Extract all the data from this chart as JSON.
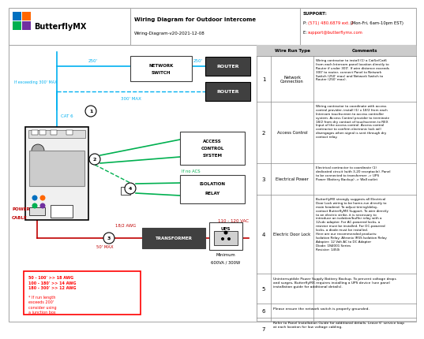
{
  "title": "Wiring Diagram for Outdoor Intercome",
  "subtitle": "Wiring-Diagram-v20-2021-12-08",
  "support_label": "SUPPORT:",
  "support_phone_prefix": "P: ",
  "support_phone_red": "(571) 480.6879 ext. 2",
  "support_phone_suffix": " (Mon-Fri, 6am-10pm EST)",
  "support_email_prefix": "E: ",
  "support_email_red": "support@butterflymx.com",
  "company": "ButterflyMX",
  "row1_comment": "Wiring contractor to install (1) a Cat5e/Cat6\nfrom each Intercom panel location directly to\nRouter if under 300'. If wire distance exceeds\n300' to router, connect Panel to Network\nSwitch (250' max) and Network Switch to\nRouter (250' max).",
  "row2_comment": "Wiring contractor to coordinate with access\ncontrol provider, install (1) x 18/2 from each\nIntercom touchscreen to access controller\nsystem. Access Control provider to terminate\n18/2 from dry contact of touchscreen to REX\nInput of the access control. Access control\ncontractor to confirm electronic lock will\ndisengages when signal is sent through dry\ncontact relay.",
  "row3_comment": "Electrical contractor to coordinate (1)\ndedicated circuit (with 3-20 receptacle). Panel\nto be connected to transformer -> UPS\nPower (Battery Backup) -> Wall outlet",
  "row4_comment": "ButterflyMX strongly suggests all Electrical\nDoor Lock wiring to be home-run directly to\nmain headend. To adjust timing/delay,\ncontact ButterflyMX Support. To wire directly\nto an electric strike, it is necessary to\nintroduce an isolation/buffer relay with a\n12vdc adapter. For AC-powered locks, a\nresistor must be installed. For DC-powered\nlocks, a diode must be installed.\nHere are our recommended products:\nIsolation Relay: Altronix IR5S Isolation Relay\nAdapter: 12 Volt AC to DC Adapter\nDiode: 1N4001 Series\nResistor: 1450i",
  "row5_text": "Uninterruptible Power Supply Battery Backup. To prevent voltage drops\nand surges, ButterflyMX requires installing a UPS device (see panel\ninstallation guide for additional details).",
  "row6_text": "Please ensure the network switch is properly grounded.",
  "row7_text": "Refer to Panel Installation Guide for additional details. Leave 6' service loop\nat each location for low voltage cabling.",
  "cyan": "#00b0f0",
  "green": "#00b050",
  "dark_red": "#c00000",
  "red": "#ff0000",
  "dark_gray": "#404040",
  "white": "#ffffff",
  "light_gray": "#cccccc",
  "mid_gray": "#888888",
  "logo_blue": "#0070c0",
  "logo_orange": "#ff6600",
  "logo_green": "#00b050",
  "logo_purple": "#7030a0"
}
